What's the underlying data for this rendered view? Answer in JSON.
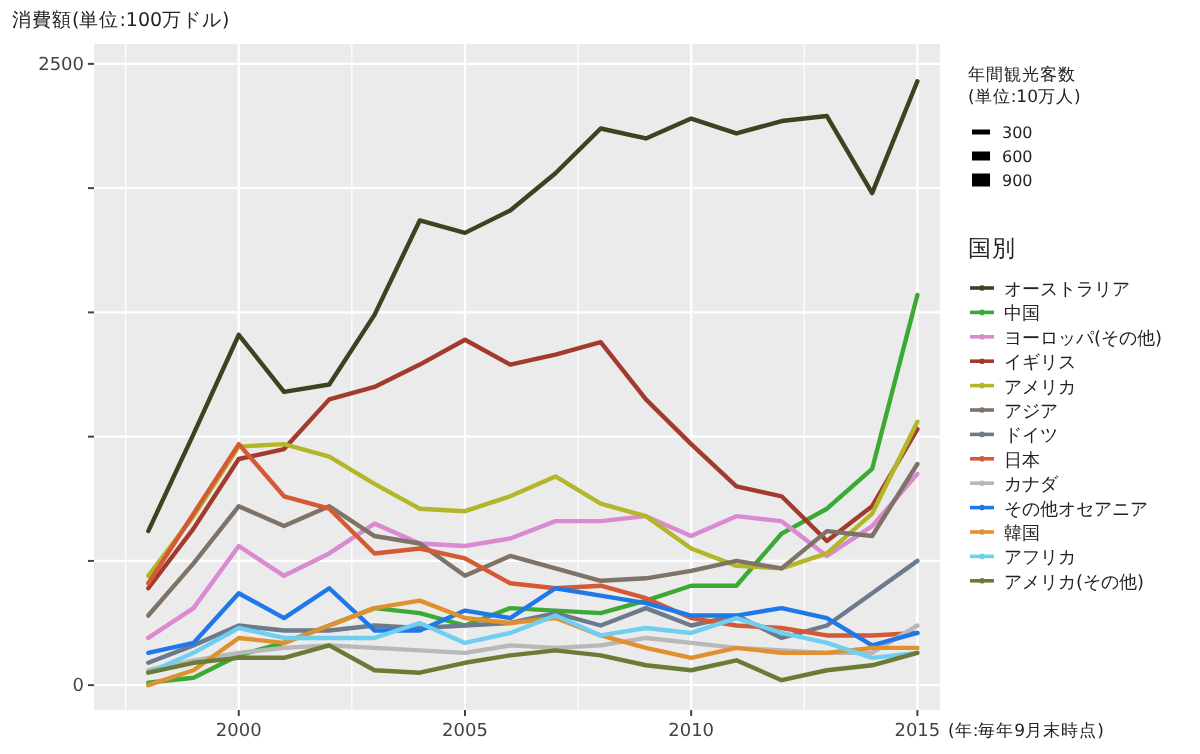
{
  "chart_data": {
    "type": "line",
    "title": "消費額(単位:100万ドル)",
    "xlabel": "(年:毎年9月末時点)",
    "legend_title": "国別",
    "legend": "right",
    "grid": true,
    "x": [
      1998,
      1999,
      2000,
      2001,
      2002,
      2003,
      2004,
      2005,
      2006,
      2007,
      2008,
      2009,
      2010,
      2011,
      2012,
      2013,
      2014,
      2015
    ],
    "xlim": [
      1996.8,
      2015.5
    ],
    "xticks": [
      {
        "value": 1997.5,
        "label": null
      },
      2000,
      {
        "value": 2002.5,
        "label": null
      },
      2005,
      {
        "value": 2007.5,
        "label": null
      },
      2010,
      {
        "value": 2012.5,
        "label": null
      },
      2015
    ],
    "ylim": [
      -100,
      2580
    ],
    "yticks": [
      0,
      {
        "value": 500,
        "label": null
      },
      {
        "value": 1000,
        "label": null
      },
      {
        "value": 1500,
        "label": null
      },
      {
        "value": 2000,
        "label": null
      },
      2500
    ],
    "annotations": [
      "年間観光客数\n(単位:10万人)",
      "300",
      "600",
      "900"
    ],
    "series": [
      {
        "name": "オーストラリア",
        "color": "#3d4220",
        "values": [
          620,
          1010,
          1410,
          1180,
          1210,
          1490,
          1870,
          1820,
          1910,
          2060,
          2240,
          2200,
          2280,
          2220,
          2270,
          2290,
          1980,
          2430
        ]
      },
      {
        "name": "中国",
        "color": "#3aaa35",
        "values": [
          10,
          30,
          120,
          170,
          240,
          310,
          290,
          240,
          310,
          300,
          290,
          340,
          400,
          400,
          610,
          710,
          870,
          1570
        ]
      },
      {
        "name": "ヨーロッパ(その他)",
        "color": "#d98ad0",
        "values": [
          190,
          310,
          560,
          440,
          530,
          650,
          570,
          560,
          590,
          660,
          660,
          680,
          600,
          680,
          660,
          520,
          640,
          850
        ]
      },
      {
        "name": "イギリス",
        "color": "#a33a2e",
        "values": [
          390,
          630,
          910,
          950,
          1150,
          1200,
          1290,
          1390,
          1290,
          1330,
          1380,
          1150,
          970,
          800,
          760,
          580,
          720,
          1030
        ]
      },
      {
        "name": "アメリカ",
        "color": "#b5b52a",
        "values": [
          440,
          680,
          960,
          970,
          920,
          810,
          710,
          700,
          760,
          840,
          730,
          680,
          550,
          480,
          470,
          530,
          690,
          1060
        ]
      },
      {
        "name": "アジア",
        "color": "#7f7266",
        "values": [
          280,
          490,
          720,
          640,
          720,
          600,
          570,
          440,
          520,
          470,
          420,
          430,
          460,
          500,
          470,
          620,
          600,
          890
        ]
      },
      {
        "name": "ドイツ",
        "color": "#6b7b8c",
        "values": [
          90,
          160,
          240,
          220,
          220,
          240,
          230,
          240,
          250,
          290,
          240,
          310,
          240,
          280,
          190,
          240,
          370,
          500
        ]
      },
      {
        "name": "日本",
        "color": "#d45a35",
        "values": [
          410,
          690,
          970,
          760,
          710,
          530,
          550,
          510,
          410,
          390,
          400,
          350,
          270,
          240,
          230,
          200,
          200,
          210
        ]
      },
      {
        "name": "カナダ",
        "color": "#b8b8b8",
        "values": [
          60,
          100,
          130,
          150,
          160,
          150,
          140,
          130,
          160,
          150,
          160,
          190,
          170,
          150,
          140,
          130,
          130,
          240
        ]
      },
      {
        "name": "その他オセアニア",
        "color": "#1f78e8",
        "values": [
          130,
          170,
          370,
          270,
          390,
          220,
          220,
          300,
          270,
          390,
          360,
          330,
          280,
          280,
          310,
          270,
          160,
          210
        ]
      },
      {
        "name": "韓国",
        "color": "#e0902f",
        "values": [
          0,
          60,
          190,
          170,
          240,
          310,
          340,
          270,
          250,
          270,
          200,
          150,
          110,
          150,
          130,
          130,
          150,
          150
        ]
      },
      {
        "name": "アフリカ",
        "color": "#6ecff0",
        "values": [
          50,
          130,
          230,
          190,
          190,
          190,
          250,
          170,
          210,
          280,
          200,
          230,
          210,
          270,
          210,
          170,
          110,
          130
        ]
      },
      {
        "name": "アメリカ(その他)",
        "color": "#6b7a35",
        "values": [
          50,
          90,
          110,
          110,
          160,
          60,
          50,
          90,
          120,
          140,
          120,
          80,
          60,
          100,
          20,
          60,
          80,
          130
        ]
      }
    ]
  }
}
